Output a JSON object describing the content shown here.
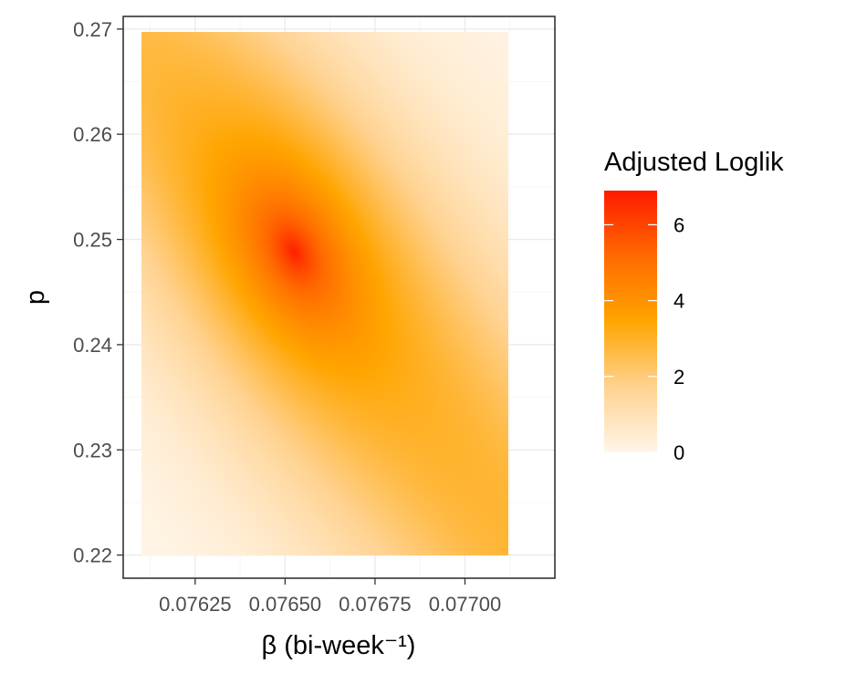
{
  "chart_data": {
    "type": "heatmap",
    "title": "",
    "xlabel": "β (bi-week⁻¹)",
    "ylabel": "p",
    "xlim": [
      0.07605,
      0.07725
    ],
    "ylim": [
      0.2178,
      0.2712
    ],
    "x_ticks": [
      0.07625,
      0.0765,
      0.07675,
      0.077
    ],
    "x_tick_labels": [
      "0.07625",
      "0.07650",
      "0.07675",
      "0.07700"
    ],
    "y_ticks": [
      0.22,
      0.23,
      0.24,
      0.25,
      0.26,
      0.27
    ],
    "y_tick_labels": [
      "0.22",
      "0.23",
      "0.24",
      "0.25",
      "0.26",
      "0.27"
    ],
    "data_x_range": [
      0.0761,
      0.07712
    ],
    "data_y_range": [
      0.22,
      0.2697
    ],
    "surface": {
      "peak": {
        "x": 0.076525,
        "y": 0.2488,
        "z": 6.8
      },
      "ridge": "negative correlation between beta and p",
      "corner_values": {
        "top_left": 2.6,
        "top_right": 0.3,
        "bottom_left": 0.1,
        "bottom_right": 2.7
      }
    },
    "legend": {
      "title": "Adjusted Loglik",
      "ticks": [
        0,
        2,
        4,
        6
      ],
      "tick_labels": [
        "0",
        "2",
        "4",
        "6"
      ],
      "range": [
        0,
        6.9
      ],
      "colors": [
        "#FFF5E8",
        "#FFD290",
        "#FFA500",
        "#FF6A00",
        "#FF1A00"
      ],
      "placement": "right"
    },
    "grid": true
  }
}
